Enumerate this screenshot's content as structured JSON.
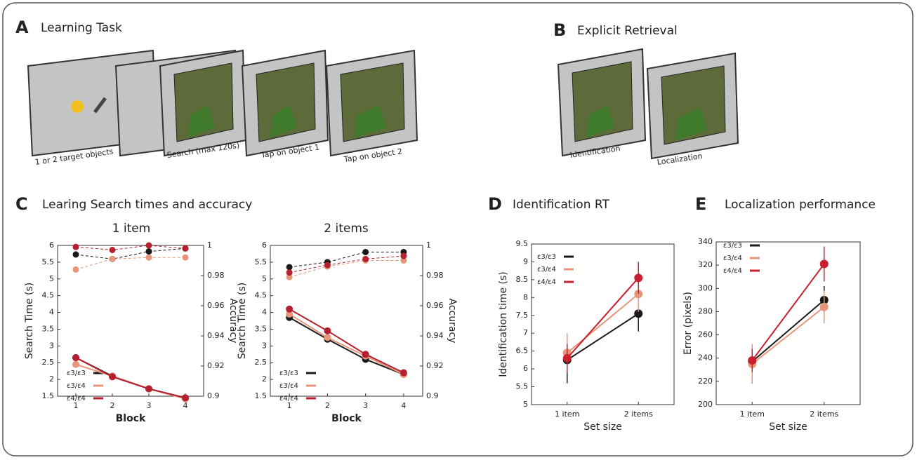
{
  "panel_a": {
    "letter": "A",
    "title": "Learning Task",
    "steps": [
      "1 or 2 target objects",
      "Search (max 120s)",
      "Tap on object 1",
      "Tap on object 2"
    ]
  },
  "panel_b": {
    "letter": "B",
    "title": "Explicit Retrieval",
    "steps": [
      "Identification",
      "Localization"
    ]
  },
  "chart_data": [
    {
      "type": "line",
      "panel": "C",
      "title": "Learing Search times and accuracy",
      "subtitle": "1 item",
      "categories": [
        "1",
        "2",
        "3",
        "4"
      ],
      "xlabel": "Block",
      "ylabel": "Search Time (s)",
      "y2label": "Accuracy",
      "ylim": [
        1.5,
        6
      ],
      "yticks": [
        1.5,
        2,
        2.5,
        3,
        3.5,
        4,
        4.5,
        5,
        5.5,
        6
      ],
      "y2lim": [
        0.9,
        1
      ],
      "y2ticks": [
        0.9,
        0.92,
        0.94,
        0.96,
        0.98,
        1
      ],
      "series": [
        {
          "name": "ε3/ε3",
          "color": "#1a1a1a",
          "values": [
            2.65,
            2.1,
            1.72,
            1.45
          ],
          "accuracy": [
            0.994,
            0.991,
            0.996,
            0.998
          ]
        },
        {
          "name": "ε3/ε4",
          "color": "#e8967a",
          "values": [
            2.45,
            2.1,
            1.72,
            1.42
          ],
          "accuracy": [
            0.984,
            0.991,
            0.992,
            0.992
          ]
        },
        {
          "name": "ε4/ε4",
          "color": "#b5202e",
          "values": [
            2.65,
            2.08,
            1.72,
            1.45
          ],
          "accuracy": [
            0.999,
            0.997,
            1.0,
            0.998
          ]
        }
      ]
    },
    {
      "type": "line",
      "subtitle": "2 items",
      "categories": [
        "1",
        "2",
        "3",
        "4"
      ],
      "xlabel": "Block",
      "ylabel": "Search Time (s)",
      "y2label": "Accuracy",
      "ylim": [
        1.5,
        6
      ],
      "yticks": [
        1.5,
        2,
        2.5,
        3,
        3.5,
        4,
        4.5,
        5,
        5.5,
        6
      ],
      "y2lim": [
        0.9,
        1
      ],
      "y2ticks": [
        0.9,
        0.92,
        0.94,
        0.96,
        0.98,
        1
      ],
      "series": [
        {
          "name": "ε3/ε3",
          "color": "#1a1a1a",
          "values": [
            3.85,
            3.2,
            2.6,
            2.15
          ],
          "accuracy": [
            0.9856,
            0.9889,
            0.9956,
            0.9956
          ]
        },
        {
          "name": "ε3/ε4",
          "color": "#e8967a",
          "values": [
            3.95,
            3.25,
            2.7,
            2.15
          ],
          "accuracy": [
            0.979,
            0.986,
            0.99,
            0.99
          ]
        },
        {
          "name": "ε4/ε4",
          "color": "#b5202e",
          "values": [
            4.1,
            3.45,
            2.75,
            2.2
          ],
          "accuracy": [
            0.982,
            0.987,
            0.991,
            0.993
          ]
        }
      ]
    },
    {
      "type": "line",
      "panel": "D",
      "title": "Identification RT",
      "categories": [
        "1 item",
        "2 items"
      ],
      "xlabel": "Set size",
      "ylabel": "Identification time (s)",
      "ylim": [
        5,
        9.5
      ],
      "yticks": [
        5,
        5.5,
        6,
        6.5,
        7,
        7.5,
        8,
        8.5,
        9,
        9.5
      ],
      "series": [
        {
          "name": "ε3/ε3",
          "color": "#1a1a1a",
          "values": [
            6.25,
            7.55
          ],
          "errors": [
            0.65,
            0.5
          ]
        },
        {
          "name": "ε3/ε4",
          "color": "#e8967a",
          "values": [
            6.45,
            8.1
          ],
          "errors": [
            0.55,
            0.5
          ]
        },
        {
          "name": "ε4/ε4",
          "color": "#c8202e",
          "values": [
            6.3,
            8.55
          ],
          "errors": [
            0.4,
            0.45
          ]
        }
      ]
    },
    {
      "type": "line",
      "panel": "E",
      "title": "Localization performance",
      "categories": [
        "1 item",
        "2 items"
      ],
      "xlabel": "Set size",
      "ylabel": "Error (pixels)",
      "ylim": [
        200,
        340
      ],
      "yticks": [
        200,
        220,
        240,
        260,
        280,
        300,
        320,
        340
      ],
      "series": [
        {
          "name": "ε3/ε3",
          "color": "#1a1a1a",
          "values": [
            237,
            290
          ],
          "errors": [
            15,
            12
          ]
        },
        {
          "name": "ε3/ε4",
          "color": "#e8967a",
          "values": [
            235,
            284
          ],
          "errors": [
            17,
            14
          ]
        },
        {
          "name": "ε4/ε4",
          "color": "#c8202e",
          "values": [
            238,
            321
          ],
          "errors": [
            10,
            15
          ]
        }
      ]
    }
  ]
}
